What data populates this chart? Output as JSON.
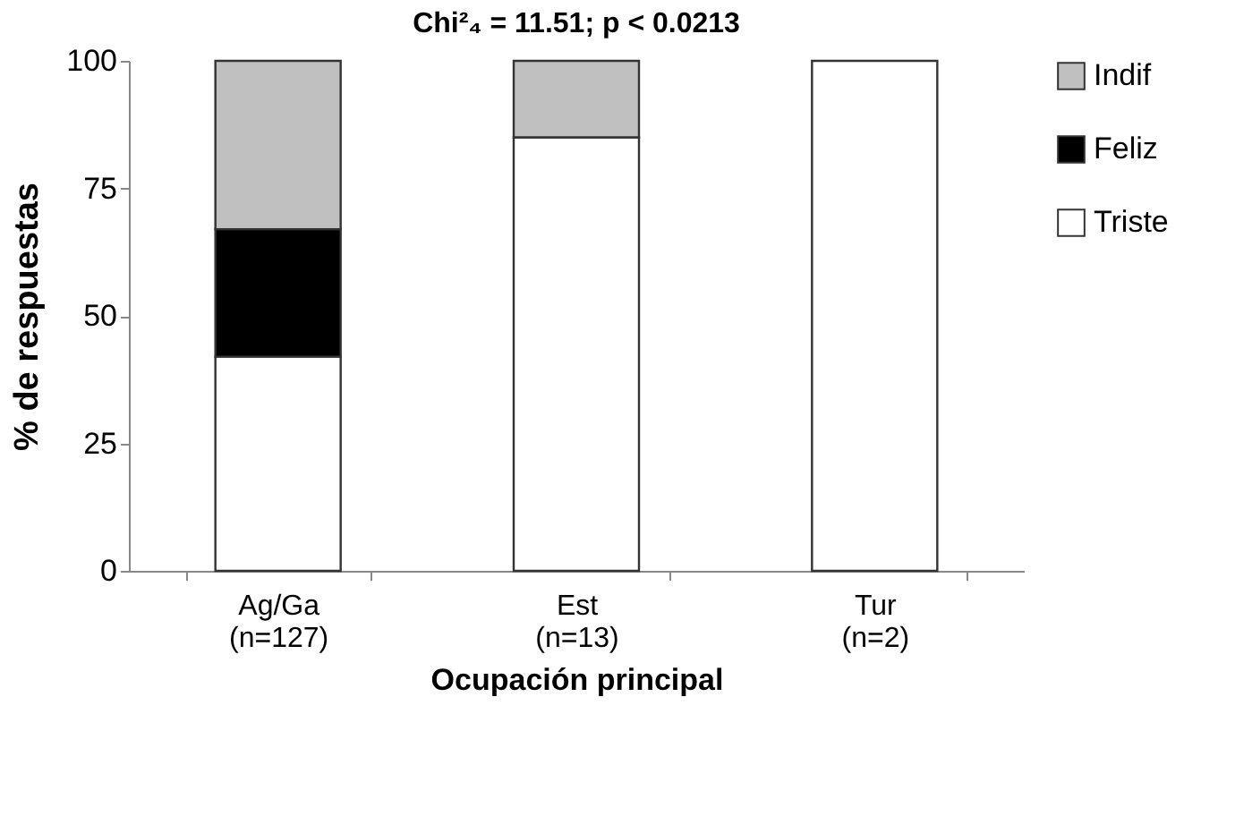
{
  "chart_data": {
    "type": "bar",
    "stacked": true,
    "title": "Chi²₄ = 11.51; p <  0.0213",
    "xlabel": "Ocupación principal",
    "ylabel": "% de respuestas",
    "categories": [
      "Ag/Ga\n(n=127)",
      "Est\n(n=13)",
      "Tur\n(n=2)"
    ],
    "series": [
      {
        "name": "Triste",
        "color": "#ffffff",
        "values": [
          42,
          85,
          100
        ]
      },
      {
        "name": "Feliz",
        "color": "#000000",
        "values": [
          25,
          0,
          0
        ]
      },
      {
        "name": "Indif",
        "color": "#c0c0c0",
        "values": [
          33,
          15,
          0
        ]
      }
    ],
    "ylim": [
      0,
      100
    ],
    "yticks": [
      0,
      25,
      50,
      75,
      100
    ],
    "grid": false,
    "legend": "right"
  }
}
